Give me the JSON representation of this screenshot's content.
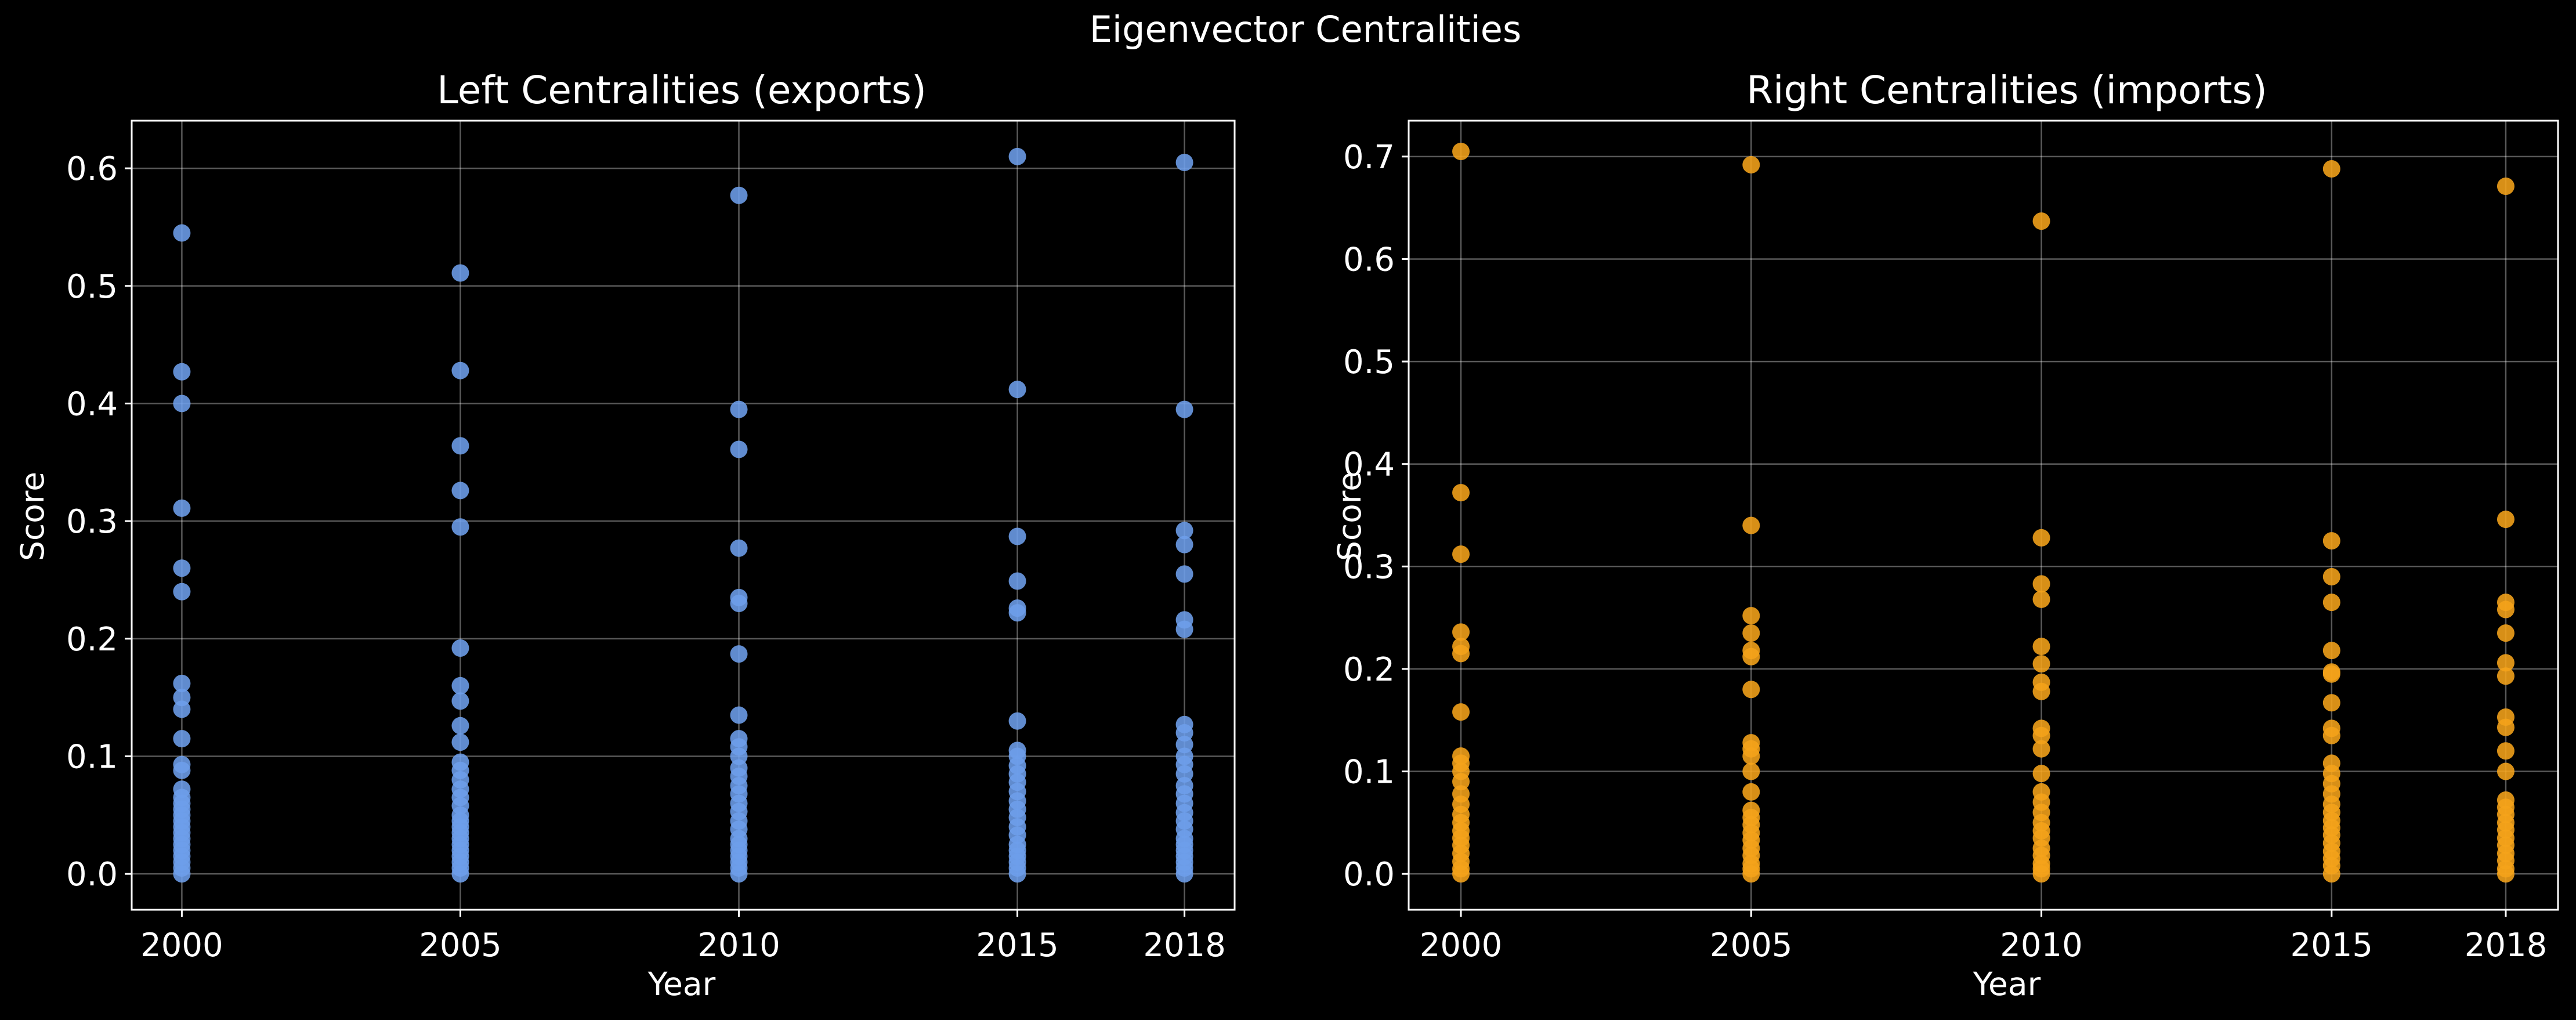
{
  "figure": {
    "suptitle": "Eigenvector Centralities"
  },
  "chart_data": [
    {
      "type": "scatter",
      "title": "Left Centralities (exports)",
      "xlabel": "Year",
      "ylabel": "Score",
      "xlim": [
        1999.1,
        2018.9
      ],
      "ylim": [
        -0.0305,
        0.6405
      ],
      "xticks": [
        2000,
        2005,
        2010,
        2015,
        2018
      ],
      "yticks": [
        0.0,
        0.1,
        0.2,
        0.3,
        0.4,
        0.5,
        0.6
      ],
      "ytick_labels": [
        "0.0",
        "0.1",
        "0.2",
        "0.3",
        "0.4",
        "0.5",
        "0.6"
      ],
      "grid": true,
      "color": "#6d9eeb",
      "series": [
        {
          "x": 2000,
          "values": [
            0.545,
            0.427,
            0.4,
            0.311,
            0.26,
            0.24,
            0.162,
            0.15,
            0.14,
            0.115,
            0.093,
            0.088,
            0.072,
            0.065,
            0.06,
            0.055,
            0.05,
            0.045,
            0.04,
            0.035,
            0.03,
            0.025,
            0.02,
            0.015,
            0.01,
            0.005,
            0.0
          ]
        },
        {
          "x": 2005,
          "values": [
            0.511,
            0.428,
            0.364,
            0.326,
            0.295,
            0.192,
            0.16,
            0.147,
            0.126,
            0.112,
            0.095,
            0.088,
            0.08,
            0.072,
            0.065,
            0.058,
            0.05,
            0.045,
            0.04,
            0.035,
            0.03,
            0.025,
            0.02,
            0.015,
            0.01,
            0.005,
            0.0
          ]
        },
        {
          "x": 2010,
          "values": [
            0.577,
            0.395,
            0.361,
            0.277,
            0.235,
            0.23,
            0.187,
            0.135,
            0.115,
            0.108,
            0.1,
            0.09,
            0.083,
            0.075,
            0.068,
            0.06,
            0.053,
            0.045,
            0.038,
            0.03,
            0.025,
            0.02,
            0.015,
            0.01,
            0.005,
            0.0
          ]
        },
        {
          "x": 2015,
          "values": [
            0.61,
            0.412,
            0.287,
            0.249,
            0.226,
            0.222,
            0.13,
            0.105,
            0.1,
            0.092,
            0.085,
            0.078,
            0.07,
            0.062,
            0.055,
            0.048,
            0.04,
            0.033,
            0.025,
            0.02,
            0.015,
            0.01,
            0.005,
            0.0
          ]
        },
        {
          "x": 2018,
          "values": [
            0.605,
            0.395,
            0.292,
            0.28,
            0.255,
            0.216,
            0.208,
            0.127,
            0.12,
            0.11,
            0.1,
            0.093,
            0.085,
            0.075,
            0.068,
            0.06,
            0.052,
            0.045,
            0.038,
            0.03,
            0.025,
            0.02,
            0.015,
            0.01,
            0.005,
            0.0
          ]
        }
      ]
    },
    {
      "type": "scatter",
      "title": "Right Centralities (imports)",
      "xlabel": "Year",
      "ylabel": "Score",
      "xlim": [
        1999.1,
        2018.9
      ],
      "ylim": [
        -0.035,
        0.735
      ],
      "xticks": [
        2000,
        2005,
        2010,
        2015,
        2018
      ],
      "yticks": [
        0.0,
        0.1,
        0.2,
        0.3,
        0.4,
        0.5,
        0.6,
        0.7
      ],
      "ytick_labels": [
        "0.0",
        "0.1",
        "0.2",
        "0.3",
        "0.4",
        "0.5",
        "0.6",
        "0.7"
      ],
      "grid": true,
      "color": "#f5a31a",
      "series": [
        {
          "x": 2000,
          "values": [
            0.705,
            0.372,
            0.312,
            0.236,
            0.222,
            0.215,
            0.158,
            0.115,
            0.108,
            0.1,
            0.09,
            0.078,
            0.068,
            0.058,
            0.05,
            0.042,
            0.035,
            0.028,
            0.02,
            0.012,
            0.005,
            0.0
          ]
        },
        {
          "x": 2005,
          "values": [
            0.692,
            0.34,
            0.252,
            0.235,
            0.218,
            0.212,
            0.18,
            0.128,
            0.122,
            0.115,
            0.1,
            0.08,
            0.062,
            0.055,
            0.048,
            0.04,
            0.033,
            0.025,
            0.018,
            0.01,
            0.005,
            0.0
          ]
        },
        {
          "x": 2010,
          "values": [
            0.637,
            0.328,
            0.283,
            0.268,
            0.222,
            0.205,
            0.187,
            0.178,
            0.142,
            0.135,
            0.122,
            0.098,
            0.08,
            0.07,
            0.06,
            0.05,
            0.042,
            0.035,
            0.025,
            0.018,
            0.01,
            0.005,
            0.0
          ]
        },
        {
          "x": 2015,
          "values": [
            0.688,
            0.325,
            0.29,
            0.265,
            0.218,
            0.197,
            0.195,
            0.167,
            0.142,
            0.135,
            0.108,
            0.098,
            0.088,
            0.078,
            0.068,
            0.06,
            0.052,
            0.045,
            0.038,
            0.03,
            0.022,
            0.015,
            0.008,
            0.0
          ]
        },
        {
          "x": 2018,
          "values": [
            0.671,
            0.346,
            0.265,
            0.258,
            0.235,
            0.206,
            0.193,
            0.153,
            0.143,
            0.12,
            0.1,
            0.072,
            0.065,
            0.058,
            0.05,
            0.043,
            0.035,
            0.028,
            0.02,
            0.013,
            0.005,
            0.0
          ]
        }
      ]
    }
  ]
}
